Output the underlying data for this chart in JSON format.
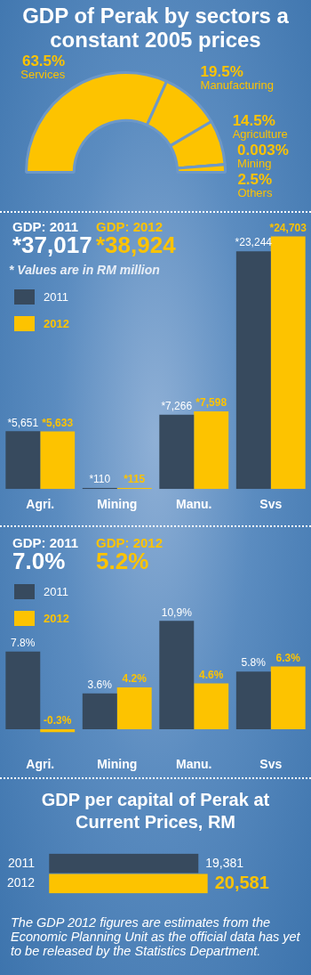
{
  "chart_data": [
    {
      "type": "donut",
      "title": "GDP of Perak by sectors a constant 2005 prices",
      "categories": [
        "Services",
        "Manufacturing",
        "Agriculture",
        "Mining",
        "Others"
      ],
      "values": [
        63.5,
        19.5,
        14.5,
        0.003,
        2.5
      ],
      "value_labels": [
        "63.5%",
        "19.5%",
        "14.5%",
        "0.003%",
        "2.5%"
      ],
      "colors": [
        "#fdc300",
        "#fdc300",
        "#fdc300",
        "#fdc300",
        "#fdc300"
      ]
    },
    {
      "type": "bar",
      "categories": [
        "Agri.",
        "Mining",
        "Manu.",
        "Svs"
      ],
      "legend": "top left",
      "annotations": [
        "GDP: 2011",
        "*37,017",
        "GDP: 2012",
        "*38,924",
        "* Values are in RM million"
      ],
      "series": [
        {
          "name": "2011",
          "color": "#374a5e",
          "values": [
            5651,
            110,
            7266,
            23244
          ],
          "value_labels": [
            "*5,651",
            "*110",
            "*7,266",
            "*23,244"
          ]
        },
        {
          "name": "2012",
          "color": "#fdc300",
          "values": [
            5633,
            115,
            7598,
            24703
          ],
          "value_labels": [
            "*5,633",
            "*115",
            "*7,598",
            "*24,703"
          ]
        }
      ]
    },
    {
      "type": "bar",
      "categories": [
        "Agri.",
        "Mining",
        "Manu.",
        "Svs"
      ],
      "legend": "top left",
      "annotations": [
        "GDP: 2011",
        "7.0%",
        "GDP: 2012",
        "5.2%"
      ],
      "series": [
        {
          "name": "2011",
          "color": "#374a5e",
          "values": [
            7.8,
            3.6,
            10.9,
            5.8
          ],
          "value_labels": [
            "7.8%",
            "3.6%",
            "10,9%",
            "5.8%"
          ]
        },
        {
          "name": "2012",
          "color": "#fdc300",
          "values": [
            -0.3,
            4.2,
            4.6,
            6.3
          ],
          "value_labels": [
            "-0.3%",
            "4.2%",
            "4.6%",
            "6.3%"
          ]
        }
      ]
    },
    {
      "type": "bar",
      "orientation": "horizontal",
      "title": "GDP per capital of Perak at Current Prices, RM",
      "categories": [
        "2011",
        "2012"
      ],
      "values": [
        19381,
        20581
      ],
      "colors": [
        "#374a5e",
        "#fdc300"
      ],
      "value_labels": [
        "19,381",
        "20,581"
      ],
      "annotations": [
        "The GDP 2012 figures are estimates from the Economic Planning Unit as the official data has yet to be released by the Statistics Department."
      ]
    }
  ]
}
